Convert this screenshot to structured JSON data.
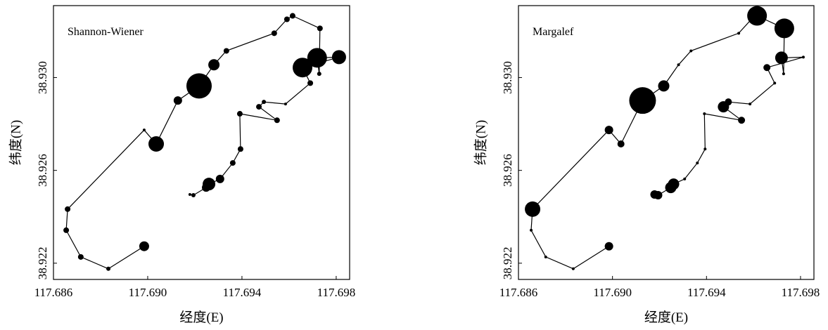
{
  "chart_data": [
    {
      "type": "bubble",
      "annotation": "Shannon-Wiener",
      "xlabel": "经度(E)",
      "ylabel": "纬度(N)",
      "x": [
        117.68985,
        117.68833,
        117.68716,
        117.68654,
        117.6866,
        117.68985,
        117.69036,
        117.69128,
        117.69218,
        117.69281,
        117.69334,
        117.69537,
        117.69591,
        117.69615,
        117.69731,
        117.69728,
        117.69719,
        117.69812,
        117.69657,
        117.6969,
        117.69585,
        117.69493,
        117.69472,
        117.69549,
        117.69391,
        117.69394,
        117.69361,
        117.69307,
        117.6926,
        117.69248,
        117.69194,
        117.69179
      ],
      "y": [
        38.92273,
        38.92176,
        38.92227,
        38.92342,
        38.92433,
        38.92774,
        38.92714,
        38.92901,
        38.92964,
        38.93055,
        38.93115,
        38.93191,
        38.93251,
        38.93266,
        38.93212,
        38.93016,
        38.93085,
        38.93088,
        38.93043,
        38.92976,
        38.92886,
        38.92895,
        38.92874,
        38.92816,
        38.92844,
        38.92692,
        38.92632,
        38.92563,
        38.92541,
        38.92526,
        38.92493,
        38.92496
      ],
      "sizes": [
        7,
        3,
        4,
        4,
        4,
        2,
        11,
        6,
        18,
        8,
        4,
        4,
        4,
        4,
        4,
        3,
        14,
        10,
        14,
        4,
        2,
        3,
        4,
        4,
        4,
        4,
        4,
        6,
        9,
        6,
        3,
        2
      ],
      "color": "#000000",
      "xlim": [
        117.686,
        117.69857
      ],
      "ylim": [
        38.9213,
        38.9331
      ],
      "xticks": [
        117.686,
        {
          "value": 117.69,
          "label": "117.690"
        },
        117.694,
        117.698
      ],
      "yticks": [
        38.922,
        38.926,
        {
          "value": 38.93,
          "label": "38.930"
        }
      ]
    },
    {
      "type": "bubble",
      "annotation": "Margalef",
      "xlabel": "经度(E)",
      "ylabel": "纬度(N)",
      "x": [
        117.68985,
        117.68833,
        117.68716,
        117.68654,
        117.6866,
        117.68985,
        117.69036,
        117.69128,
        117.69218,
        117.69281,
        117.69334,
        117.69537,
        117.69591,
        117.69615,
        117.69731,
        117.69728,
        117.69719,
        117.69812,
        117.69657,
        117.6969,
        117.69585,
        117.69493,
        117.69472,
        117.69549,
        117.69391,
        117.69394,
        117.69361,
        117.69307,
        117.6926,
        117.69248,
        117.69194,
        117.69179
      ],
      "y": [
        38.92273,
        38.92176,
        38.92227,
        38.92342,
        38.92433,
        38.92774,
        38.92714,
        38.92901,
        38.92964,
        38.93055,
        38.93115,
        38.93191,
        38.93251,
        38.93266,
        38.93212,
        38.93016,
        38.93085,
        38.93088,
        38.93043,
        38.92976,
        38.92886,
        38.92895,
        38.92874,
        38.92816,
        38.92844,
        38.92692,
        38.92632,
        38.92563,
        38.92541,
        38.92526,
        38.92493,
        38.92496
      ],
      "sizes": [
        6,
        2,
        2,
        2,
        11,
        6,
        5,
        19,
        8,
        2,
        2,
        2,
        2,
        14,
        14,
        2,
        9,
        2,
        5,
        2,
        2,
        5,
        8,
        5,
        2,
        2,
        2,
        2,
        8,
        8,
        6,
        6
      ],
      "color": "#000000",
      "xlim": [
        117.686,
        117.69857
      ],
      "ylim": [
        38.9213,
        38.9331
      ],
      "xticks": [
        117.686,
        {
          "value": 117.69,
          "label": "117.690"
        },
        117.694,
        117.698
      ],
      "yticks": [
        38.922,
        38.926,
        {
          "value": 38.93,
          "label": "38.930"
        }
      ]
    }
  ]
}
